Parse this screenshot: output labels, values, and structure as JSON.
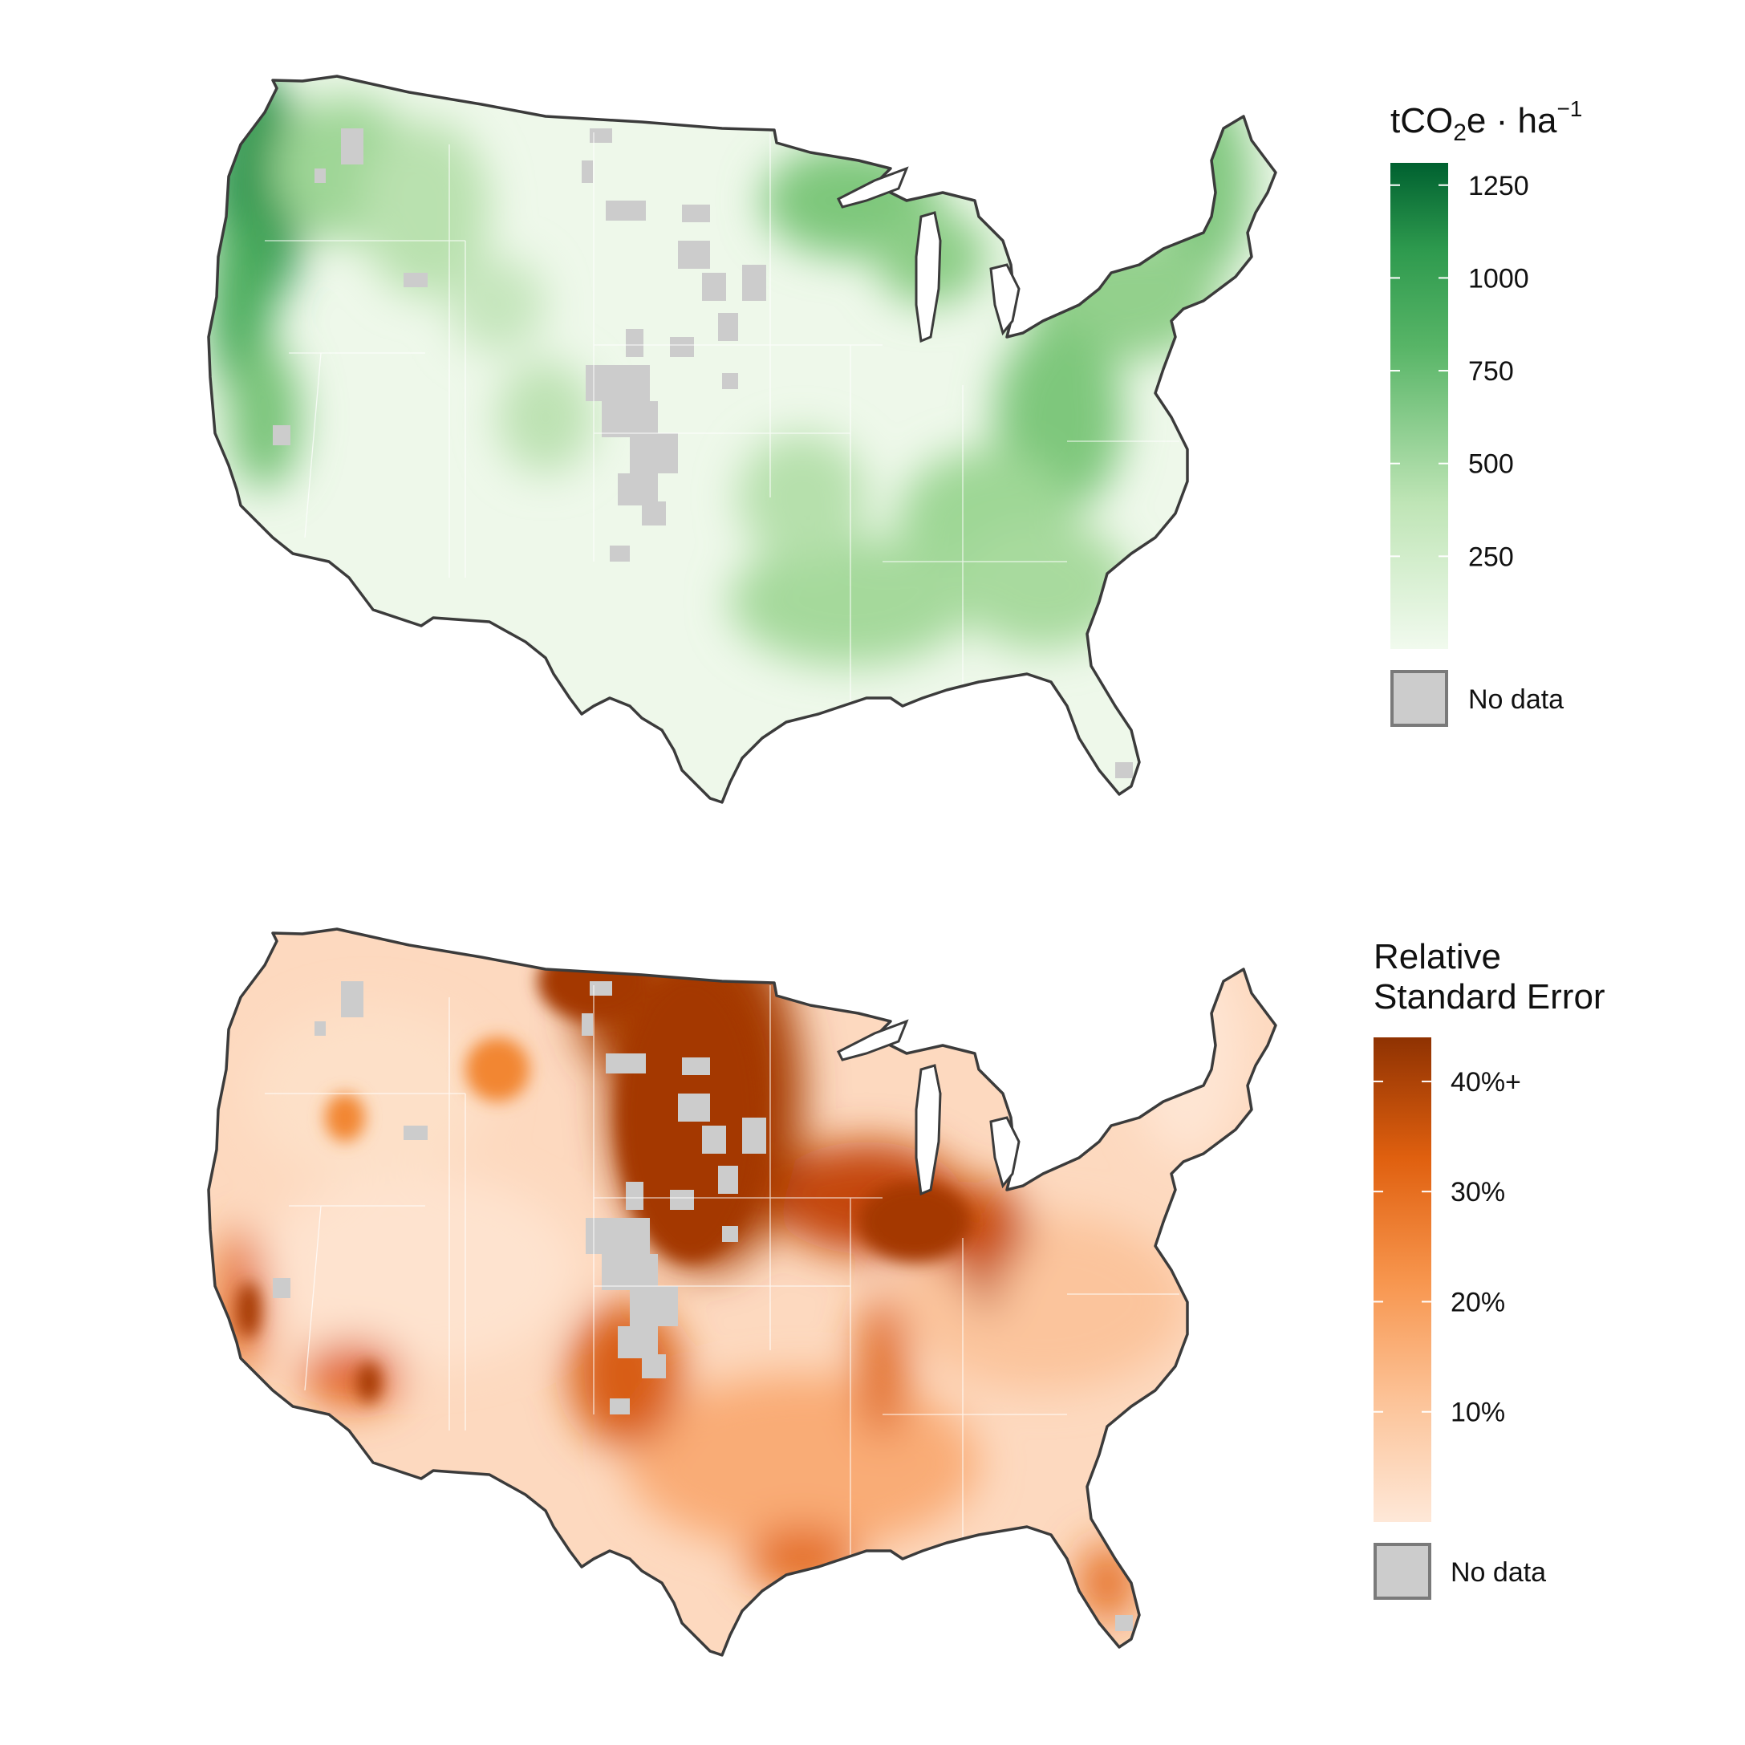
{
  "maps": [
    {
      "id": "carbon",
      "legend": {
        "title_main": "tCO",
        "title_sub": "2",
        "title_after": "e · ha",
        "title_sup": "−1",
        "ticks": [
          "1250",
          "1000",
          "750",
          "500",
          "250"
        ],
        "tick_values": [
          1250,
          1000,
          750,
          500,
          250
        ],
        "max_value": 1310,
        "colors": [
          "#f1faee",
          "#a9dca0",
          "#4cae5f",
          "#006130"
        ],
        "nodata_label": "No data",
        "nodata_color": "#cccccc"
      }
    },
    {
      "id": "rse",
      "legend": {
        "title_line1": "Relative",
        "title_line2": "Standard Error",
        "ticks": [
          "40%+",
          "30%",
          "20%",
          "10%"
        ],
        "tick_values": [
          40,
          30,
          20,
          10
        ],
        "max_value": 44,
        "colors": [
          "#fee8d8",
          "#fbb07f",
          "#f27b2a",
          "#d34f0a",
          "#8f3202"
        ],
        "nodata_label": "No data",
        "nodata_color": "#cccccc"
      }
    }
  ]
}
